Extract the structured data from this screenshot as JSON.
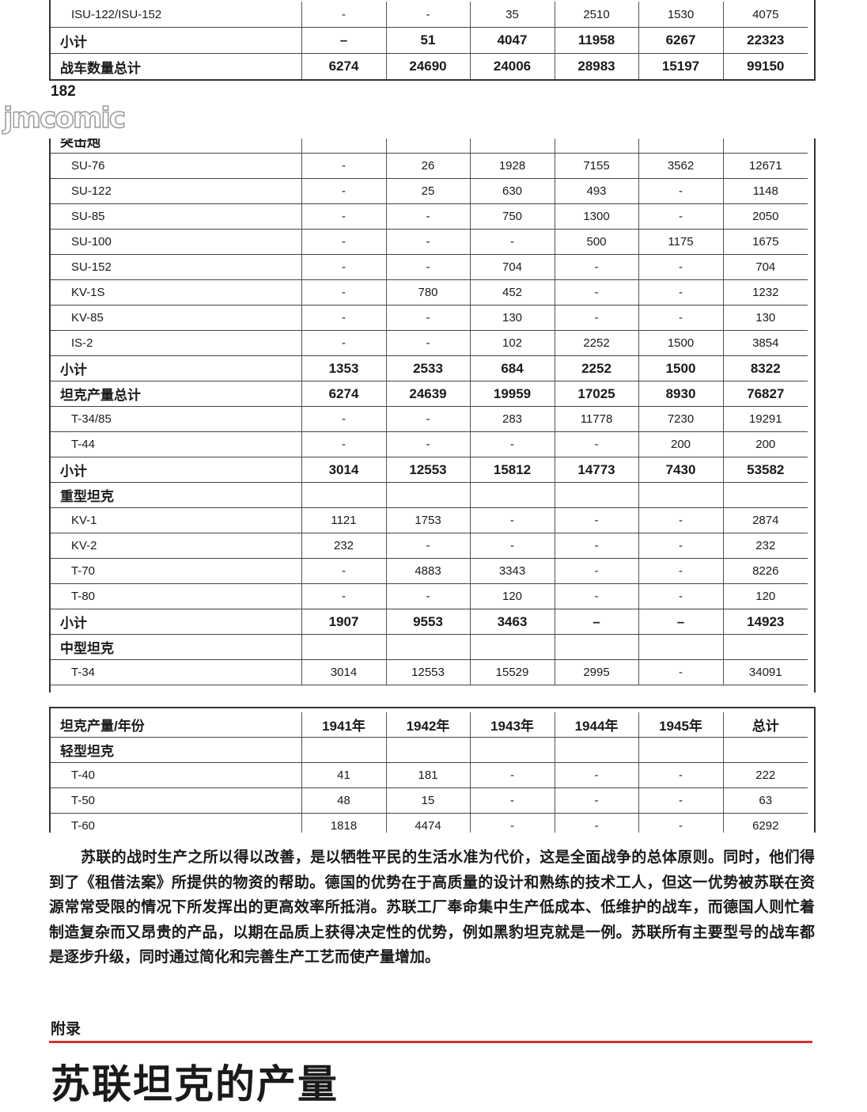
{
  "page_number": "182",
  "watermark": "jmcomic",
  "top_segment": [
    {
      "type": "item",
      "label": "ISU-122/ISU-152",
      "values": [
        "-",
        "-",
        "35",
        "2510",
        "1530",
        "4075"
      ]
    },
    {
      "type": "bold",
      "label": "小计",
      "values": [
        "–",
        "51",
        "4047",
        "11958",
        "6267",
        "22323"
      ]
    },
    {
      "type": "bold",
      "label": "战车数量总计",
      "values": [
        "6274",
        "24690",
        "24006",
        "28983",
        "15197",
        "99150"
      ]
    }
  ],
  "middle_segment": [
    {
      "type": "section",
      "label": "突击炮",
      "values": [
        "",
        "",
        "",
        "",
        "",
        ""
      ]
    },
    {
      "type": "item",
      "label": "SU-76",
      "values": [
        "-",
        "26",
        "1928",
        "7155",
        "3562",
        "12671"
      ]
    },
    {
      "type": "item",
      "label": "SU-122",
      "values": [
        "-",
        "25",
        "630",
        "493",
        "-",
        "1148"
      ]
    },
    {
      "type": "item",
      "label": "SU-85",
      "values": [
        "-",
        "-",
        "750",
        "1300",
        "-",
        "2050"
      ]
    },
    {
      "type": "item",
      "label": "SU-100",
      "values": [
        "-",
        "-",
        "-",
        "500",
        "1175",
        "1675"
      ]
    },
    {
      "type": "item",
      "label": "SU-152",
      "values": [
        "-",
        "-",
        "704",
        "-",
        "-",
        "704"
      ]
    },
    {
      "type": "item",
      "label": "KV-1S",
      "values": [
        "-",
        "780",
        "452",
        "-",
        "-",
        "1232"
      ]
    },
    {
      "type": "item",
      "label": "KV-85",
      "values": [
        "-",
        "-",
        "130",
        "-",
        "-",
        "130"
      ]
    },
    {
      "type": "item",
      "label": "IS-2",
      "values": [
        "-",
        "-",
        "102",
        "2252",
        "1500",
        "3854"
      ]
    },
    {
      "type": "bold",
      "label": "小计",
      "values": [
        "1353",
        "2533",
        "684",
        "2252",
        "1500",
        "8322"
      ]
    },
    {
      "type": "bold",
      "label": "坦克产量总计",
      "values": [
        "6274",
        "24639",
        "19959",
        "17025",
        "8930",
        "76827"
      ]
    },
    {
      "type": "item",
      "label": "T-34/85",
      "values": [
        "-",
        "-",
        "283",
        "11778",
        "7230",
        "19291"
      ]
    },
    {
      "type": "item",
      "label": "T-44",
      "values": [
        "-",
        "-",
        "-",
        "-",
        "200",
        "200"
      ]
    },
    {
      "type": "bold",
      "label": "小计",
      "values": [
        "3014",
        "12553",
        "15812",
        "14773",
        "7430",
        "53582"
      ]
    },
    {
      "type": "section",
      "label": "重型坦克",
      "values": [
        "",
        "",
        "",
        "",
        "",
        ""
      ]
    },
    {
      "type": "item",
      "label": "KV-1",
      "values": [
        "1121",
        "1753",
        "-",
        "-",
        "-",
        "2874"
      ]
    },
    {
      "type": "item",
      "label": "KV-2",
      "values": [
        "232",
        "-",
        "-",
        "-",
        "-",
        "232"
      ]
    },
    {
      "type": "item",
      "label": "T-70",
      "values": [
        "-",
        "4883",
        "3343",
        "-",
        "-",
        "8226"
      ]
    },
    {
      "type": "item",
      "label": "T-80",
      "values": [
        "-",
        "-",
        "120",
        "-",
        "-",
        "120"
      ]
    },
    {
      "type": "bold",
      "label": "小计",
      "values": [
        "1907",
        "9553",
        "3463",
        "–",
        "–",
        "14923"
      ]
    },
    {
      "type": "section",
      "label": "中型坦克",
      "values": [
        "",
        "",
        "",
        "",
        "",
        ""
      ]
    },
    {
      "type": "item",
      "label": "T-34",
      "values": [
        "3014",
        "12553",
        "15529",
        "2995",
        "-",
        "34091"
      ]
    }
  ],
  "bottom_segment": [
    {
      "type": "header",
      "label": "坦克产量/年份",
      "values": [
        "1941年",
        "1942年",
        "1943年",
        "1944年",
        "1945年",
        "总计"
      ]
    },
    {
      "type": "section",
      "label": "轻型坦克",
      "values": [
        "",
        "",
        "",
        "",
        "",
        ""
      ]
    },
    {
      "type": "item",
      "label": "T-40",
      "values": [
        "41",
        "181",
        "-",
        "-",
        "-",
        "222"
      ]
    },
    {
      "type": "item",
      "label": "T-50",
      "values": [
        "48",
        "15",
        "-",
        "-",
        "-",
        "63"
      ]
    },
    {
      "type": "item",
      "label": "T-60",
      "values": [
        "1818",
        "4474",
        "-",
        "-",
        "-",
        "6292"
      ]
    }
  ],
  "paragraph": "苏联的战时生产之所以得以改善，是以牺牲平民的生活水准为代价，这是全面战争的总体原则。同时，他们得到了《租借法案》所提供的物资的帮助。德国的优势在于高质量的设计和熟练的技术工人，但这一优势被苏联在资源常常受限的情况下所发挥出的更高效率所抵消。苏联工厂奉命集中生产低成本、低维护的战车，而德国人则忙着制造复杂而又昂贵的产品，以期在品质上获得决定性的优势，例如黑豹坦克就是一例。苏联所有主要型号的战车都是逐步升级，同时通过简化和完善生产工艺而使产量增加。",
  "section_label": "附录",
  "chapter_title": "苏联坦克的产量",
  "accent_color": "#d0312d"
}
